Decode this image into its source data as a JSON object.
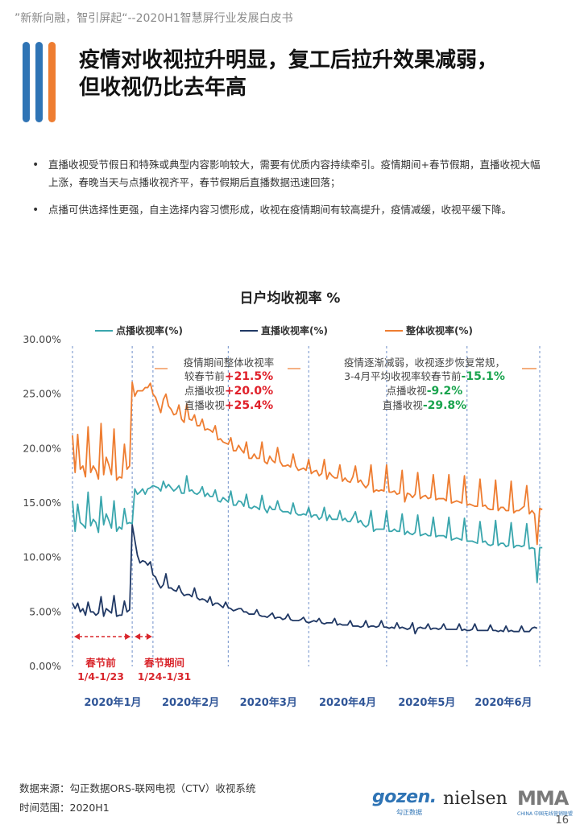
{
  "header": {
    "text": "”新新向融，智引屏起“--2020H1智慧屏行业发展白皮书"
  },
  "accent_colors": {
    "blue": "#2f74b5",
    "orange": "#ee7d31"
  },
  "title": {
    "line1": "疫情对收视拉升明显，复工后拉升效果减弱，",
    "line2": "但收视仍比去年高"
  },
  "bullets": [
    "直播收视受节假日和特殊或典型内容影响较大，需要有优质内容持续牵引。疫情期间+春节假期，直播收视大幅上涨，春晚当天与点播收视齐平，春节假期后直播数据迅速回落；",
    "点播可供选择性更强，自主选择内容习惯形成，收视在疫情期间有较高提升，疫情减缓，收视平缓下降。"
  ],
  "annotations": {
    "a1": {
      "l1": "疫情期间整体收视率",
      "l2": "较春节前",
      "v2": "+21.5%",
      "l3": "点播收视",
      "v3": "+20.0%",
      "l4": "直播收视",
      "v4": "+25.4%"
    },
    "a2": {
      "l1": "疫情逐渐减弱，收视逐步恢复常规，",
      "l2": "3-4月平均收视率较春节前",
      "v2": "-15.1%",
      "l3": "点播收视",
      "v3": "-9.2%",
      "l4": "直播收视",
      "v4": "-29.8%"
    }
  },
  "periods": {
    "p1": {
      "l1": "春节前",
      "l2": "1/4-1/23"
    },
    "p2": {
      "l1": "春节期间",
      "l2": "1/24-1/31"
    }
  },
  "chart_data": {
    "type": "line",
    "title": "日户均收视率 %",
    "ylim": [
      0,
      30
    ],
    "yticks": [
      "0.00%",
      "5.00%",
      "10.00%",
      "15.00%",
      "20.00%",
      "25.00%",
      "30.00%"
    ],
    "months": [
      "2020年1月",
      "2020年2月",
      "2020年3月",
      "2020年4月",
      "2020年5月",
      "2020年6月"
    ],
    "legend_position": "top",
    "x_domain": [
      0,
      180
    ],
    "month_boundaries": [
      0,
      31,
      60,
      91,
      121,
      152,
      180
    ],
    "series": [
      {
        "name": "点播收视率(%)",
        "color": "#3aa6ad",
        "values": [
          15.2,
          12.4,
          14.9,
          13.2,
          13.0,
          12.7,
          16.0,
          12.9,
          13.5,
          13.2,
          12.3,
          15.6,
          13.0,
          14.0,
          13.4,
          12.7,
          15.2,
          12.4,
          12.8,
          12.6,
          14.5,
          13.1,
          13.2,
          13.1,
          16.3,
          15.8,
          16.0,
          16.3,
          15.8,
          16.3,
          16.4,
          16.6,
          16.5,
          16.4,
          16.1,
          17.0,
          16.4,
          16.7,
          16.4,
          16.1,
          16.3,
          16.6,
          15.9,
          15.9,
          17.5,
          16.1,
          16.2,
          15.9,
          15.8,
          16.0,
          16.5,
          15.6,
          15.9,
          15.6,
          15.6,
          16.2,
          15.2,
          15.1,
          15.5,
          15.3,
          15.1,
          16.1,
          14.8,
          14.8,
          15.2,
          15.1,
          14.7,
          15.8,
          14.6,
          14.5,
          14.7,
          14.6,
          14.4,
          15.7,
          14.5,
          14.1,
          14.7,
          14.4,
          14.4,
          15.2,
          14.4,
          14.2,
          14.2,
          14.2,
          14.0,
          15.0,
          14.1,
          13.9,
          13.9,
          14.0,
          13.9,
          14.6,
          13.7,
          13.9,
          13.9,
          13.5,
          13.7,
          14.6,
          13.4,
          13.9,
          13.5,
          13.5,
          13.5,
          14.3,
          13.4,
          13.6,
          13.3,
          13.3,
          13.7,
          14.2,
          13.2,
          13.4,
          13.0,
          12.8,
          13.0,
          14.3,
          12.4,
          12.6,
          12.6,
          12.6,
          12.6,
          14.3,
          12.4,
          12.4,
          12.6,
          12.4,
          12.4,
          14.0,
          12.1,
          12.4,
          12.2,
          12.1,
          12.3,
          13.9,
          12.0,
          12.1,
          12.2,
          12.0,
          12.0,
          13.7,
          11.9,
          12.0,
          12.0,
          12.0,
          11.8,
          13.7,
          11.6,
          11.7,
          11.8,
          11.7,
          11.6,
          13.6,
          11.5,
          11.5,
          11.5,
          11.4,
          11.3,
          13.3,
          11.4,
          11.5,
          11.2,
          11.1,
          11.2,
          13.4,
          11.1,
          11.3,
          11.3,
          11.0,
          11.1,
          13.2,
          10.9,
          11.1,
          11.1,
          11.0,
          11.1,
          13.1,
          10.8,
          10.9,
          10.8,
          7.7,
          10.9,
          10.9
        ]
      },
      {
        "name": "直播收视率(%)",
        "color": "#203864",
        "values": [
          5.8,
          5.3,
          5.8,
          5.0,
          5.3,
          4.7,
          5.9,
          5.0,
          5.0,
          4.7,
          4.9,
          6.4,
          4.6,
          5.3,
          5.1,
          4.9,
          6.5,
          4.6,
          4.7,
          4.7,
          6.0,
          5.0,
          5.2,
          13.0,
          11.6,
          10.2,
          9.5,
          9.7,
          9.6,
          9.3,
          9.6,
          8.4,
          8.2,
          7.6,
          7.2,
          7.5,
          8.5,
          7.2,
          7.2,
          7.0,
          6.9,
          7.4,
          6.8,
          6.5,
          6.6,
          6.6,
          6.4,
          7.2,
          6.3,
          6.1,
          6.2,
          6.1,
          5.9,
          6.4,
          5.6,
          5.8,
          5.8,
          5.6,
          5.4,
          5.9,
          5.4,
          5.3,
          5.1,
          5.2,
          5.3,
          5.3,
          5.0,
          5.0,
          4.8,
          4.8,
          4.8,
          5.2,
          4.7,
          4.6,
          4.6,
          4.5,
          4.7,
          4.9,
          4.4,
          4.5,
          4.5,
          4.3,
          4.4,
          4.8,
          4.3,
          4.2,
          4.2,
          4.2,
          4.3,
          4.5,
          4.1,
          4.0,
          4.1,
          4.2,
          4.1,
          4.4,
          4.0,
          3.9,
          4.0,
          4.0,
          4.0,
          4.4,
          3.8,
          3.9,
          3.8,
          3.8,
          3.8,
          4.2,
          3.7,
          3.7,
          3.7,
          3.6,
          3.7,
          4.2,
          3.6,
          3.7,
          3.7,
          3.6,
          3.7,
          4.2,
          3.6,
          3.6,
          3.5,
          3.6,
          3.5,
          4.0,
          3.5,
          3.6,
          3.5,
          3.4,
          3.5,
          4.0,
          3.0,
          3.5,
          3.6,
          3.5,
          3.5,
          3.9,
          3.4,
          3.5,
          3.5,
          3.4,
          3.5,
          3.9,
          3.4,
          3.4,
          3.4,
          3.4,
          3.4,
          3.9,
          3.3,
          3.4,
          3.3,
          3.3,
          3.4,
          3.9,
          3.3,
          3.3,
          3.3,
          3.3,
          3.3,
          3.8,
          3.3,
          3.3,
          3.2,
          3.3,
          3.2,
          3.7,
          3.2,
          3.3,
          3.2,
          3.2,
          3.2,
          3.7,
          3.2,
          3.2,
          3.2,
          3.5,
          3.6,
          3.5
        ]
      },
      {
        "name": "整体收视率(%)",
        "color": "#ee7d31",
        "values": [
          21.2,
          17.8,
          21.3,
          18.1,
          18.4,
          17.4,
          22.0,
          17.8,
          18.4,
          18.0,
          17.2,
          22.3,
          17.6,
          19.2,
          18.5,
          17.6,
          21.8,
          17.1,
          17.4,
          17.3,
          20.4,
          18.1,
          18.4,
          26.1,
          24.8,
          25.3,
          25.3,
          25.3,
          25.6,
          25.6,
          26.0,
          25.0,
          24.7,
          24.0,
          23.3,
          24.5,
          25.0,
          23.9,
          23.6,
          23.1,
          23.2,
          24.0,
          22.7,
          22.4,
          24.1,
          22.7,
          22.6,
          23.1,
          22.1,
          22.1,
          22.7,
          21.7,
          21.8,
          21.7,
          21.5,
          22.1,
          20.8,
          20.9,
          20.6,
          20.5,
          20.4,
          21.0,
          19.8,
          19.8,
          20.3,
          19.9,
          19.6,
          20.6,
          19.1,
          19.1,
          19.5,
          19.1,
          19.1,
          20.6,
          18.8,
          18.6,
          19.3,
          18.9,
          18.7,
          20.1,
          18.8,
          18.4,
          18.4,
          18.5,
          18.3,
          19.5,
          18.4,
          18.0,
          18.1,
          18.2,
          18.0,
          19.0,
          17.7,
          17.9,
          18.0,
          17.5,
          17.7,
          19.0,
          17.2,
          17.8,
          17.5,
          17.3,
          17.3,
          18.5,
          17.0,
          17.3,
          17.0,
          16.9,
          17.4,
          18.4,
          16.9,
          17.1,
          16.7,
          16.4,
          16.7,
          18.5,
          16.0,
          16.2,
          16.1,
          16.2,
          16.1,
          18.5,
          16.0,
          16.0,
          16.1,
          15.8,
          15.9,
          18.0,
          15.1,
          15.9,
          15.8,
          15.5,
          15.8,
          17.8,
          15.4,
          15.6,
          15.7,
          15.4,
          15.5,
          17.6,
          15.3,
          15.4,
          15.4,
          15.4,
          15.2,
          17.6,
          15.0,
          15.1,
          15.2,
          15.1,
          15.0,
          17.5,
          14.8,
          14.9,
          14.8,
          14.7,
          14.7,
          17.2,
          14.7,
          14.8,
          14.5,
          14.4,
          14.4,
          17.1,
          14.3,
          14.6,
          14.6,
          14.3,
          14.3,
          17.0,
          14.1,
          14.3,
          14.3,
          14.5,
          14.7,
          16.6,
          14.0,
          14.3,
          14.0,
          11.2,
          14.5,
          14.4
        ]
      }
    ]
  },
  "footer": {
    "source": "数据来源：勾正数据ORS-联网电视（CTV）收视系统",
    "range": "时间范围：2020H1"
  },
  "logos": {
    "gozen": "gozen.",
    "gozen_sub": "勾正数据",
    "nielsen": "nielsen",
    "mma": "MMA",
    "mma_sub": "CHINA 中国无线营销联盟"
  },
  "page_number": "16"
}
